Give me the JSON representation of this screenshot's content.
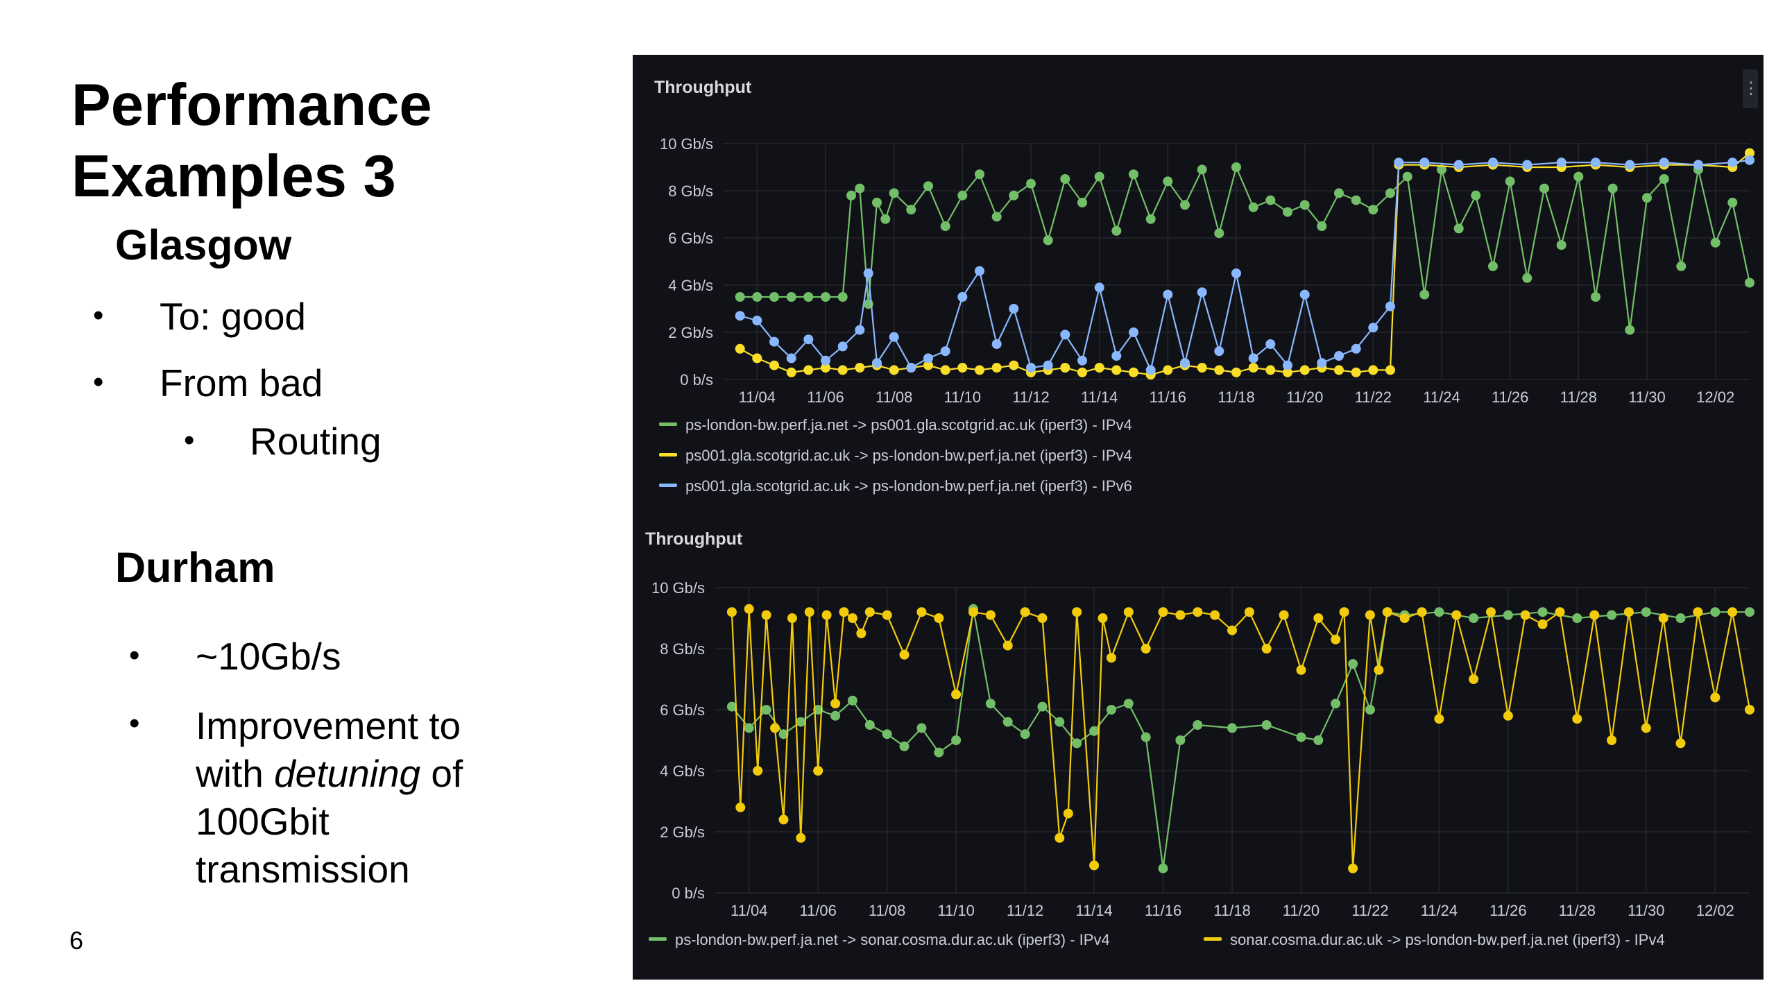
{
  "slide": {
    "title_line1": "Performance",
    "title_line2": "Examples 3",
    "glasgow_heading": "Glasgow",
    "glasgow_b1": "To: good",
    "glasgow_b2": "From bad",
    "glasgow_b2_sub": "Routing",
    "durham_heading": "Durham",
    "durham_b1": "~10Gb/s",
    "durham_b2_l1a": "Improvement to",
    "durham_b2_l2a": "with ",
    "durham_b2_l2_em": "detuning",
    "durham_b2_l2b": " of",
    "durham_b2_l3": "100Gbit",
    "durham_b2_l4": "transmission",
    "bullet": "•",
    "page_number": "6"
  },
  "chart_data": [
    {
      "type": "line",
      "title": "Throughput",
      "ylabel": "",
      "yunit": "Gb/s",
      "ylim": [
        0,
        10
      ],
      "yticks": [
        "0 b/s",
        "2 Gb/s",
        "4 Gb/s",
        "6 Gb/s",
        "8 Gb/s",
        "10 Gb/s"
      ],
      "xlim": [
        "11/03",
        "12/03"
      ],
      "xticks": [
        "11/04",
        "11/06",
        "11/08",
        "11/10",
        "11/12",
        "11/14",
        "11/16",
        "11/18",
        "11/20",
        "11/22",
        "11/24",
        "11/26",
        "11/28",
        "11/30",
        "12/02"
      ],
      "grid": true,
      "legend": "bottom",
      "series": [
        {
          "name": "ps-london-bw.perf.ja.net -> ps001.gla.scotgrid.ac.uk (iperf3) - IPv4",
          "color": "#73bf69",
          "x": [
            "11/03 12:00",
            "11/04 00:00",
            "11/04 12:00",
            "11/05 00:00",
            "11/05 12:00",
            "11/06 00:00",
            "11/06 12:00",
            "11/06 18:00",
            "11/07 00:00",
            "11/07 06:00",
            "11/07 12:00",
            "11/07 18:00",
            "11/08 00:00",
            "11/08 12:00",
            "11/09 00:00",
            "11/09 12:00",
            "11/10 00:00",
            "11/10 12:00",
            "11/11 00:00",
            "11/11 12:00",
            "11/12 00:00",
            "11/12 12:00",
            "11/13 00:00",
            "11/13 12:00",
            "11/14 00:00",
            "11/14 12:00",
            "11/15 00:00",
            "11/15 12:00",
            "11/16 00:00",
            "11/16 12:00",
            "11/17 00:00",
            "11/17 12:00",
            "11/18 00:00",
            "11/18 12:00",
            "11/19 00:00",
            "11/19 12:00",
            "11/20 00:00",
            "11/20 12:00",
            "11/21 00:00",
            "11/21 12:00",
            "11/22 00:00",
            "11/22 12:00",
            "11/23 00:00",
            "11/23 12:00",
            "11/24 00:00",
            "11/24 12:00",
            "11/25 00:00",
            "11/25 12:00",
            "11/26 00:00",
            "11/26 12:00",
            "11/27 00:00",
            "11/27 12:00",
            "11/28 00:00",
            "11/28 12:00",
            "11/29 00:00",
            "11/29 12:00",
            "11/30 00:00",
            "11/30 12:00",
            "12/01 00:00",
            "12/01 12:00",
            "12/02 00:00",
            "12/02 12:00",
            "12/03 00:00"
          ],
          "values": [
            3.5,
            3.5,
            3.5,
            3.5,
            3.5,
            3.5,
            3.5,
            7.8,
            8.1,
            3.2,
            7.5,
            6.8,
            7.9,
            7.2,
            8.2,
            6.5,
            7.8,
            8.7,
            6.9,
            7.8,
            8.3,
            5.9,
            8.5,
            7.5,
            8.6,
            6.3,
            8.7,
            6.8,
            8.4,
            7.4,
            8.9,
            6.2,
            9.0,
            7.3,
            7.6,
            7.1,
            7.4,
            6.5,
            7.9,
            7.6,
            7.2,
            7.9,
            8.6,
            3.6,
            8.9,
            6.4,
            7.8,
            4.8,
            8.4,
            4.3,
            8.1,
            5.7,
            8.6,
            3.5,
            8.1,
            2.1,
            7.7,
            8.5,
            4.8,
            8.9,
            5.8,
            7.5,
            4.1
          ]
        },
        {
          "name": "ps001.gla.scotgrid.ac.uk -> ps-london-bw.perf.ja.net (iperf3) - IPv4",
          "color": "#fade2a",
          "x": [
            "11/03 12:00",
            "11/04 00:00",
            "11/04 12:00",
            "11/05 00:00",
            "11/05 12:00",
            "11/06 00:00",
            "11/06 12:00",
            "11/07 00:00",
            "11/07 12:00",
            "11/08 00:00",
            "11/08 12:00",
            "11/09 00:00",
            "11/09 12:00",
            "11/10 00:00",
            "11/10 12:00",
            "11/11 00:00",
            "11/11 12:00",
            "11/12 00:00",
            "11/12 12:00",
            "11/13 00:00",
            "11/13 12:00",
            "11/14 00:00",
            "11/14 12:00",
            "11/15 00:00",
            "11/15 12:00",
            "11/16 00:00",
            "11/16 12:00",
            "11/17 00:00",
            "11/17 12:00",
            "11/18 00:00",
            "11/18 12:00",
            "11/19 00:00",
            "11/19 12:00",
            "11/20 00:00",
            "11/20 12:00",
            "11/21 00:00",
            "11/21 12:00",
            "11/22 00:00",
            "11/22 12:00",
            "11/22 18:00",
            "11/23 12:00",
            "11/24 12:00",
            "11/25 12:00",
            "11/26 12:00",
            "11/27 12:00",
            "11/28 12:00",
            "11/29 12:00",
            "11/30 12:00",
            "12/01 12:00",
            "12/02 12:00",
            "12/03 00:00"
          ],
          "values": [
            1.3,
            0.9,
            0.6,
            0.3,
            0.4,
            0.5,
            0.4,
            0.5,
            0.6,
            0.4,
            0.5,
            0.6,
            0.4,
            0.5,
            0.4,
            0.5,
            0.6,
            0.3,
            0.4,
            0.5,
            0.3,
            0.5,
            0.4,
            0.3,
            0.2,
            0.4,
            0.6,
            0.5,
            0.4,
            0.3,
            0.5,
            0.4,
            0.3,
            0.4,
            0.5,
            0.4,
            0.3,
            0.4,
            0.4,
            9.1,
            9.1,
            9.0,
            9.1,
            9.0,
            9.0,
            9.1,
            9.0,
            9.1,
            9.1,
            9.0,
            9.6
          ]
        },
        {
          "name": "ps001.gla.scotgrid.ac.uk -> ps-london-bw.perf.ja.net (iperf3) - IPv6",
          "color": "#8ab8ff",
          "x": [
            "11/03 12:00",
            "11/04 00:00",
            "11/04 12:00",
            "11/05 00:00",
            "11/05 12:00",
            "11/06 00:00",
            "11/06 12:00",
            "11/07 00:00",
            "11/07 06:00",
            "11/07 12:00",
            "11/08 00:00",
            "11/08 12:00",
            "11/09 00:00",
            "11/09 12:00",
            "11/10 00:00",
            "11/10 12:00",
            "11/11 00:00",
            "11/11 12:00",
            "11/12 00:00",
            "11/12 12:00",
            "11/13 00:00",
            "11/13 12:00",
            "11/14 00:00",
            "11/14 12:00",
            "11/15 00:00",
            "11/15 12:00",
            "11/16 00:00",
            "11/16 12:00",
            "11/17 00:00",
            "11/17 12:00",
            "11/18 00:00",
            "11/18 12:00",
            "11/19 00:00",
            "11/19 12:00",
            "11/20 00:00",
            "11/20 12:00",
            "11/21 00:00",
            "11/21 12:00",
            "11/22 00:00",
            "11/22 12:00",
            "11/22 18:00",
            "11/23 12:00",
            "11/24 12:00",
            "11/25 12:00",
            "11/26 12:00",
            "11/27 12:00",
            "11/28 12:00",
            "11/29 12:00",
            "11/30 12:00",
            "12/01 12:00",
            "12/02 12:00",
            "12/03 00:00"
          ],
          "values": [
            2.7,
            2.5,
            1.6,
            0.9,
            1.7,
            0.8,
            1.4,
            2.1,
            4.5,
            0.7,
            1.8,
            0.5,
            0.9,
            1.2,
            3.5,
            4.6,
            1.5,
            3.0,
            0.5,
            0.6,
            1.9,
            0.8,
            3.9,
            1.0,
            2.0,
            0.4,
            3.6,
            0.7,
            3.7,
            1.2,
            4.5,
            0.9,
            1.5,
            0.6,
            3.6,
            0.7,
            1.0,
            1.3,
            2.2,
            3.1,
            9.2,
            9.2,
            9.1,
            9.2,
            9.1,
            9.2,
            9.2,
            9.1,
            9.2,
            9.1,
            9.2,
            9.3
          ]
        }
      ]
    },
    {
      "type": "line",
      "title": "Throughput",
      "ylabel": "",
      "yunit": "Gb/s",
      "ylim": [
        0,
        10
      ],
      "yticks": [
        "0 b/s",
        "2 Gb/s",
        "4 Gb/s",
        "6 Gb/s",
        "8 Gb/s",
        "10 Gb/s"
      ],
      "xlim": [
        "11/03",
        "12/03"
      ],
      "xticks": [
        "11/04",
        "11/06",
        "11/08",
        "11/10",
        "11/12",
        "11/14",
        "11/16",
        "11/18",
        "11/20",
        "11/22",
        "11/24",
        "11/26",
        "11/28",
        "11/30",
        "12/02"
      ],
      "grid": true,
      "legend": "bottom",
      "series": [
        {
          "name": "ps-london-bw.perf.ja.net -> sonar.cosma.dur.ac.uk (iperf3) - IPv4",
          "color": "#73bf69",
          "x": [
            "11/03 12:00",
            "11/04 00:00",
            "11/04 12:00",
            "11/05 00:00",
            "11/05 12:00",
            "11/06 00:00",
            "11/06 12:00",
            "11/07 00:00",
            "11/07 12:00",
            "11/08 00:00",
            "11/08 12:00",
            "11/09 00:00",
            "11/09 12:00",
            "11/10 00:00",
            "11/10 12:00",
            "11/11 00:00",
            "11/11 12:00",
            "11/12 00:00",
            "11/12 12:00",
            "11/13 00:00",
            "11/13 12:00",
            "11/14 00:00",
            "11/14 12:00",
            "11/15 00:00",
            "11/15 12:00",
            "11/16 00:00",
            "11/16 12:00",
            "11/17 00:00",
            "11/18 00:00",
            "11/19 00:00",
            "11/20 00:00",
            "11/20 12:00",
            "11/21 00:00",
            "11/21 12:00",
            "11/22 00:00",
            "11/22 12:00",
            "11/23 00:00",
            "11/24 00:00",
            "11/25 00:00",
            "11/26 00:00",
            "11/27 00:00",
            "11/28 00:00",
            "11/29 00:00",
            "11/30 00:00",
            "12/01 00:00",
            "12/02 00:00",
            "12/03 00:00"
          ],
          "values": [
            6.1,
            5.4,
            6.0,
            5.2,
            5.6,
            6.0,
            5.8,
            6.3,
            5.5,
            5.2,
            4.8,
            5.4,
            4.6,
            5.0,
            9.3,
            6.2,
            5.6,
            5.2,
            6.1,
            5.6,
            4.9,
            5.3,
            6.0,
            6.2,
            5.1,
            0.8,
            5.0,
            5.5,
            5.4,
            5.5,
            5.1,
            5.0,
            6.2,
            7.5,
            6.0,
            9.2,
            9.1,
            9.2,
            9.0,
            9.1,
            9.2,
            9.0,
            9.1,
            9.2,
            9.0,
            9.2,
            9.2
          ]
        },
        {
          "name": "sonar.cosma.dur.ac.uk -> ps-london-bw.perf.ja.net (iperf3) - IPv4",
          "color": "#f2cc0c",
          "x": [
            "11/03 12:00",
            "11/03 18:00",
            "11/04 00:00",
            "11/04 06:00",
            "11/04 12:00",
            "11/04 18:00",
            "11/05 00:00",
            "11/05 06:00",
            "11/05 12:00",
            "11/05 18:00",
            "11/06 00:00",
            "11/06 06:00",
            "11/06 12:00",
            "11/06 18:00",
            "11/07 00:00",
            "11/07 06:00",
            "11/07 12:00",
            "11/08 00:00",
            "11/08 12:00",
            "11/09 00:00",
            "11/09 12:00",
            "11/10 00:00",
            "11/10 12:00",
            "11/11 00:00",
            "11/11 12:00",
            "11/12 00:00",
            "11/12 12:00",
            "11/13 00:00",
            "11/13 06:00",
            "11/13 12:00",
            "11/14 00:00",
            "11/14 06:00",
            "11/14 12:00",
            "11/15 00:00",
            "11/15 12:00",
            "11/16 00:00",
            "11/16 12:00",
            "11/17 00:00",
            "11/17 12:00",
            "11/18 00:00",
            "11/18 12:00",
            "11/19 00:00",
            "11/19 12:00",
            "11/20 00:00",
            "11/20 12:00",
            "11/21 00:00",
            "11/21 06:00",
            "11/21 12:00",
            "11/22 00:00",
            "11/22 06:00",
            "11/22 12:00",
            "11/23 00:00",
            "11/23 12:00",
            "11/24 00:00",
            "11/24 12:00",
            "11/25 00:00",
            "11/25 12:00",
            "11/26 00:00",
            "11/26 12:00",
            "11/27 00:00",
            "11/27 12:00",
            "11/28 00:00",
            "11/28 12:00",
            "11/29 00:00",
            "11/29 12:00",
            "11/30 00:00",
            "11/30 12:00",
            "12/01 00:00",
            "12/01 12:00",
            "12/02 00:00",
            "12/02 12:00",
            "12/03 00:00"
          ],
          "values": [
            9.2,
            2.8,
            9.3,
            4.0,
            9.1,
            5.4,
            2.4,
            9.0,
            1.8,
            9.2,
            4.0,
            9.1,
            6.2,
            9.2,
            9.0,
            8.5,
            9.2,
            9.1,
            7.8,
            9.2,
            9.0,
            6.5,
            9.2,
            9.1,
            8.1,
            9.2,
            9.0,
            1.8,
            2.6,
            9.2,
            0.9,
            9.0,
            7.7,
            9.2,
            8.0,
            9.2,
            9.1,
            9.2,
            9.1,
            8.6,
            9.2,
            8.0,
            9.1,
            7.3,
            9.0,
            8.3,
            9.2,
            0.8,
            9.1,
            7.3,
            9.2,
            9.0,
            9.2,
            5.7,
            9.1,
            7.0,
            9.2,
            5.8,
            9.1,
            8.8,
            9.2,
            5.7,
            9.1,
            5.0,
            9.2,
            5.4,
            9.0,
            4.9,
            9.2,
            6.4,
            9.2,
            6.0
          ]
        }
      ]
    }
  ]
}
